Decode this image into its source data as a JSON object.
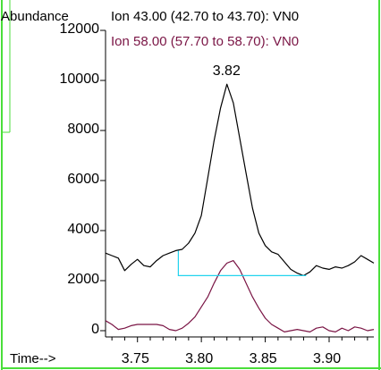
{
  "ylabel": "Abundance",
  "xlabel": "Time-->",
  "legend": [
    {
      "text": "Ion  43.00 (42.70 to 43.70): VN0",
      "color": "#000000"
    },
    {
      "text": "Ion  58.00 (57.70 to 58.70): VN0",
      "color": "#7a1545"
    }
  ],
  "colors": {
    "ion43": "#000000",
    "ion58": "#7a1545",
    "baseline": "#22d3ee",
    "frame": "#4ade3a"
  },
  "chart_data": {
    "type": "line",
    "xlim": [
      3.725,
      3.935
    ],
    "ylim": [
      -300,
      12000
    ],
    "x_ticks": [
      "3.75",
      "3.80",
      "3.85",
      "3.90"
    ],
    "x_tick_values": [
      3.75,
      3.8,
      3.85,
      3.9
    ],
    "y_ticks": [
      "0",
      "2000",
      "4000",
      "6000",
      "8000",
      "10000",
      "12000"
    ],
    "y_tick_values": [
      0,
      2000,
      4000,
      6000,
      8000,
      10000,
      12000
    ],
    "peak_label": "3.82",
    "peak_x": 3.82,
    "peak_y": 9850,
    "series": [
      {
        "name": "Ion 43.00",
        "x": [
          3.725,
          3.73,
          3.735,
          3.74,
          3.745,
          3.75,
          3.755,
          3.76,
          3.765,
          3.77,
          3.775,
          3.78,
          3.785,
          3.79,
          3.795,
          3.8,
          3.805,
          3.81,
          3.815,
          3.82,
          3.825,
          3.83,
          3.835,
          3.84,
          3.845,
          3.85,
          3.855,
          3.86,
          3.865,
          3.87,
          3.875,
          3.88,
          3.885,
          3.89,
          3.895,
          3.9,
          3.905,
          3.91,
          3.915,
          3.92,
          3.925,
          3.93,
          3.935
        ],
        "y": [
          3100,
          3000,
          2900,
          2400,
          2650,
          2850,
          2600,
          2550,
          2800,
          3000,
          3100,
          3200,
          3250,
          3500,
          3900,
          4600,
          6100,
          7600,
          8900,
          9850,
          9100,
          7700,
          6300,
          4900,
          3900,
          3400,
          3150,
          3050,
          2750,
          2450,
          2300,
          2200,
          2350,
          2600,
          2500,
          2450,
          2550,
          2500,
          2600,
          2750,
          3000,
          2850,
          2700
        ]
      },
      {
        "name": "Ion 58.00",
        "x": [
          3.725,
          3.73,
          3.735,
          3.74,
          3.745,
          3.75,
          3.755,
          3.76,
          3.765,
          3.77,
          3.775,
          3.78,
          3.785,
          3.79,
          3.795,
          3.8,
          3.805,
          3.81,
          3.815,
          3.82,
          3.825,
          3.83,
          3.835,
          3.84,
          3.845,
          3.85,
          3.855,
          3.86,
          3.865,
          3.87,
          3.875,
          3.88,
          3.885,
          3.89,
          3.895,
          3.9,
          3.905,
          3.91,
          3.915,
          3.92,
          3.925,
          3.93,
          3.935
        ],
        "y": [
          400,
          250,
          50,
          100,
          200,
          250,
          250,
          250,
          250,
          200,
          50,
          0,
          100,
          300,
          550,
          950,
          1350,
          1900,
          2400,
          2700,
          2800,
          2450,
          1900,
          1350,
          900,
          500,
          250,
          100,
          -50,
          0,
          50,
          0,
          -50,
          100,
          150,
          0,
          -50,
          100,
          0,
          150,
          100,
          0,
          50
        ]
      }
    ],
    "baseline_points": [
      {
        "x": 3.782,
        "y": 3200
      },
      {
        "x": 3.782,
        "y": 2200
      },
      {
        "x": 3.882,
        "y": 2200
      }
    ]
  }
}
